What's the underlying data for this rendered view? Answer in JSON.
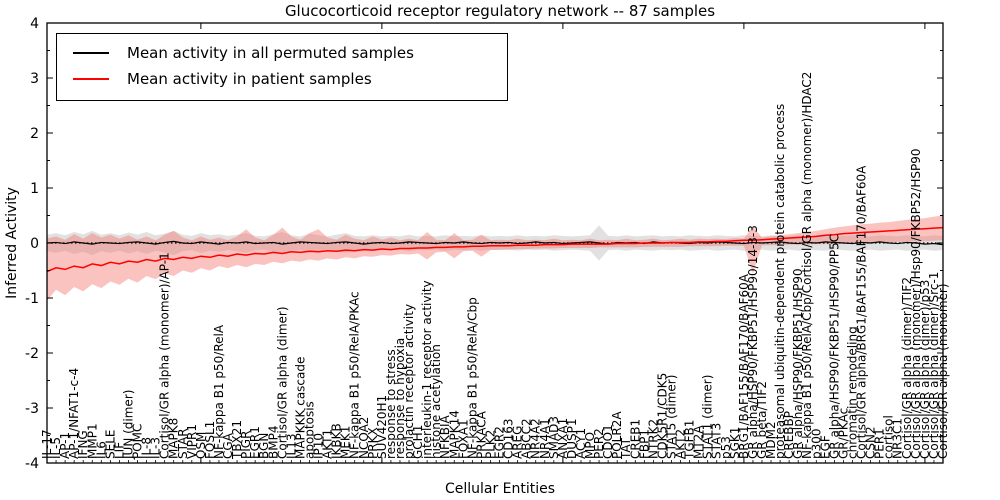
{
  "title": "Glucocorticoid receptor regulatory network -- 87 samples",
  "legend": {
    "entries": [
      {
        "label": "Mean activity in all permuted samples",
        "color": "#000000"
      },
      {
        "label": "Mean activity in patient samples",
        "color": "#ff0000"
      }
    ]
  },
  "colors": {
    "permuted_line": "#000000",
    "patient_line": "#ff0000",
    "permuted_band": "#c8c8c8",
    "patient_band": "#f77b72",
    "axis": "#000000",
    "background": "#ffffff"
  },
  "chart_data": {
    "type": "line",
    "title": "Glucocorticoid receptor regulatory network -- 87 samples",
    "xlabel": "Cellular Entities",
    "ylabel": "Inferred Activity",
    "ylim": [
      -4,
      4
    ],
    "yticks": [
      4,
      3,
      2,
      1,
      0,
      -1,
      -2,
      -3,
      -4
    ],
    "zero_line_style": "dotted",
    "grid": false,
    "legend_position": "upper left",
    "categories": [
      "IL-17",
      "IL-5",
      "AP-1",
      "AP-1/NFAT1-c-4",
      "IFNG",
      "MMP1",
      "IL6",
      "SELE",
      "LIF",
      "JUN (dimer)",
      "POMC",
      "IL-8",
      "IL-3",
      "Cortisol/GR alpha (monomer)/AP-1",
      "MAPK8",
      "STAR",
      "VIPR1",
      "OSM",
      "FOSL1",
      "NF-kappa B1 p50/RelA",
      "CGA",
      "TBX21",
      "PIGR",
      "EGR1",
      "BGN",
      "BMP4",
      "Cortisol/GR alpha (dimer)",
      "IL13",
      "MAPKKK cascade",
      "apoptosis",
      "IP10",
      "AKT1",
      "IKBKB",
      "MEK1",
      "NF-kappa B1 p50/RelA/PKAc",
      "NCOA2",
      "PRKX",
      "SUV420H1",
      "response to stress",
      "response to hypoxia",
      "prolactin receptor activity",
      "GCH1",
      "interleukin-1 receptor activity",
      "histone acetylation",
      "NFKBIA",
      "MAPK14",
      "FOXA1",
      "NF-kappa B1 p50/RelA/Cbp",
      "PRKACA",
      "PLK2",
      "EGR2",
      "CD163",
      "AREG",
      "ABCC2",
      "NR4A2",
      "NR4A1",
      "SMAD3",
      "ANXA1",
      "DUSP1",
      "ACY1",
      "MPO",
      "PER2",
      "CDO1",
      "POLR2A",
      "TAT",
      "CREB1",
      "FBP1",
      "NTRK2",
      "CDK5R1/CDK5",
      "STAT5 (dimer)",
      "AKT2",
      "TGFB1",
      "MT2A",
      "STAT1 (dimer)",
      "STAT3",
      "p53",
      "SGK1",
      "BRG1/BAF155/BAF170/BAF60A",
      "GR alpha/HSP90/FKBP51/HSP90/14-3-3",
      "GR beta/TIF2",
      "MDM2",
      "proteasomal ubiquitin-dependent protein catabolic process",
      "CREBBP",
      "GR alpha/HSP90/FKBP51/HSP90",
      "NF-kappa B1 p50/RelA/Cbp/Cortisol/GR alpha (monomer)/HDAC2",
      "p300",
      "EGF",
      "GR alpha/HSP90/FKBP51/HSP90/PP5C",
      "GR/PKAc",
      "chromatin remodeling",
      "Cortisol/GR alpha/BRG1/BAF155/BAF170/BAF60A",
      "CSN2",
      "PER1",
      "cortisol",
      "NR3C1",
      "Cortisol/GR alpha (dimer)/TIF2",
      "Cortisol/GR alpha (monomer)/Hsp90/FKBP52/HSP90",
      "Cortisol/GR alpha (dimer)/p53",
      "Cortisol/GR alpha (dimer)/Src-1",
      "Cortisol/GR alpha (monomer)"
    ],
    "series": [
      {
        "name": "Mean activity in all permuted samples",
        "color": "#000000",
        "band_color": "#c8c8c8",
        "values": [
          0.0,
          0.01,
          -0.01,
          0.02,
          0.0,
          -0.02,
          0.01,
          0.0,
          -0.01,
          0.01,
          0.02,
          0.0,
          -0.02,
          0.01,
          0.03,
          0.0,
          -0.01,
          0.02,
          0.0,
          -0.02,
          0.01,
          0.0,
          0.02,
          -0.01,
          0.0,
          0.01,
          -0.02,
          0.0,
          0.02,
          0.01,
          0.0,
          -0.01,
          0.01,
          0.02,
          0.0,
          -0.02,
          0.0,
          0.01,
          -0.01,
          0.0,
          0.02,
          0.01,
          0.0,
          -0.01,
          0.01,
          0.0,
          0.02,
          0.0,
          -0.01,
          0.01,
          0.0,
          0.01,
          -0.01,
          0.0,
          0.02,
          0.0,
          0.01,
          -0.01,
          0.0,
          0.01,
          0.02,
          0.0,
          -0.02,
          0.01,
          0.0,
          0.01,
          -0.01,
          0.02,
          0.0,
          0.01,
          0.0,
          -0.01,
          0.01,
          0.0,
          0.02,
          0.01,
          0.0,
          -0.01,
          0.01,
          0.0,
          0.01,
          0.02,
          0.0,
          -0.01,
          0.01,
          0.0,
          0.02,
          0.01,
          0.0,
          -0.01,
          0.01,
          0.0,
          0.02,
          0.0,
          -0.01,
          0.01,
          0.0,
          -0.02,
          -0.01,
          -0.03
        ],
        "band_upper": [
          0.15,
          0.18,
          0.14,
          0.2,
          0.16,
          0.22,
          0.15,
          0.18,
          0.14,
          0.19,
          0.15,
          0.2,
          0.14,
          0.17,
          0.22,
          0.15,
          0.13,
          0.18,
          0.14,
          0.16,
          0.13,
          0.15,
          0.18,
          0.13,
          0.12,
          0.16,
          0.2,
          0.14,
          0.12,
          0.17,
          0.14,
          0.12,
          0.15,
          0.18,
          0.13,
          0.12,
          0.14,
          0.12,
          0.13,
          0.12,
          0.15,
          0.12,
          0.13,
          0.12,
          0.14,
          0.12,
          0.13,
          0.12,
          0.14,
          0.12,
          0.13,
          0.12,
          0.14,
          0.12,
          0.13,
          0.12,
          0.14,
          0.13,
          0.12,
          0.13,
          0.14,
          0.32,
          0.13,
          0.12,
          0.14,
          0.12,
          0.13,
          0.14,
          0.12,
          0.13,
          0.12,
          0.14,
          0.13,
          0.12,
          0.14,
          0.13,
          0.12,
          0.14,
          0.13,
          0.12,
          0.14,
          0.13,
          0.12,
          0.14,
          0.12,
          0.13,
          0.14,
          0.12,
          0.13,
          0.14,
          0.13,
          0.12,
          0.14,
          0.13,
          0.12,
          0.14,
          0.13,
          0.12,
          0.14,
          0.13
        ],
        "band_lower": [
          -0.15,
          -0.18,
          -0.14,
          -0.2,
          -0.16,
          -0.22,
          -0.15,
          -0.18,
          -0.14,
          -0.19,
          -0.15,
          -0.2,
          -0.14,
          -0.17,
          -0.22,
          -0.15,
          -0.13,
          -0.18,
          -0.14,
          -0.16,
          -0.13,
          -0.15,
          -0.18,
          -0.13,
          -0.12,
          -0.16,
          -0.2,
          -0.14,
          -0.12,
          -0.17,
          -0.14,
          -0.12,
          -0.15,
          -0.18,
          -0.13,
          -0.12,
          -0.14,
          -0.12,
          -0.13,
          -0.12,
          -0.15,
          -0.12,
          -0.13,
          -0.12,
          -0.14,
          -0.12,
          -0.13,
          -0.12,
          -0.14,
          -0.12,
          -0.13,
          -0.12,
          -0.14,
          -0.12,
          -0.13,
          -0.12,
          -0.14,
          -0.13,
          -0.12,
          -0.13,
          -0.14,
          -0.32,
          -0.13,
          -0.12,
          -0.14,
          -0.12,
          -0.13,
          -0.14,
          -0.12,
          -0.13,
          -0.12,
          -0.14,
          -0.13,
          -0.12,
          -0.14,
          -0.13,
          -0.12,
          -0.14,
          -0.13,
          -0.12,
          -0.14,
          -0.13,
          -0.12,
          -0.14,
          -0.12,
          -0.13,
          -0.14,
          -0.12,
          -0.13,
          -0.14,
          -0.13,
          -0.12,
          -0.14,
          -0.13,
          -0.12,
          -0.14,
          -0.13,
          -0.12,
          -0.14,
          -0.13
        ]
      },
      {
        "name": "Mean activity in patient samples",
        "color": "#ff0000",
        "band_color": "#f77b72",
        "values": [
          -0.52,
          -0.45,
          -0.48,
          -0.42,
          -0.45,
          -0.38,
          -0.41,
          -0.35,
          -0.38,
          -0.33,
          -0.35,
          -0.3,
          -0.33,
          -0.28,
          -0.3,
          -0.26,
          -0.28,
          -0.24,
          -0.26,
          -0.22,
          -0.24,
          -0.2,
          -0.22,
          -0.19,
          -0.2,
          -0.17,
          -0.19,
          -0.16,
          -0.17,
          -0.15,
          -0.16,
          -0.14,
          -0.15,
          -0.13,
          -0.14,
          -0.12,
          -0.13,
          -0.11,
          -0.12,
          -0.1,
          -0.1,
          -0.09,
          -0.09,
          -0.08,
          -0.08,
          -0.07,
          -0.07,
          -0.06,
          -0.06,
          -0.05,
          -0.05,
          -0.05,
          -0.04,
          -0.04,
          -0.04,
          -0.03,
          -0.03,
          -0.03,
          -0.02,
          -0.02,
          -0.02,
          -0.02,
          -0.02,
          -0.01,
          -0.01,
          -0.01,
          0.0,
          0.0,
          0.0,
          0.01,
          0.01,
          0.01,
          0.02,
          0.02,
          0.03,
          0.03,
          0.04,
          0.05,
          0.05,
          0.06,
          0.07,
          0.08,
          0.09,
          0.1,
          0.11,
          0.12,
          0.14,
          0.15,
          0.17,
          0.18,
          0.19,
          0.2,
          0.21,
          0.22,
          0.23,
          0.24,
          0.25,
          0.26,
          0.27,
          0.28
        ],
        "band_upper": [
          0.08,
          0.12,
          0.06,
          0.16,
          0.08,
          0.18,
          0.1,
          0.15,
          0.08,
          0.14,
          0.06,
          0.12,
          0.05,
          0.15,
          0.22,
          0.1,
          0.05,
          0.12,
          0.06,
          0.1,
          0.05,
          0.12,
          0.25,
          0.1,
          0.05,
          0.15,
          0.28,
          0.12,
          0.06,
          0.18,
          0.25,
          0.1,
          0.06,
          0.15,
          0.08,
          0.05,
          0.12,
          0.06,
          0.1,
          0.05,
          0.08,
          0.05,
          0.2,
          0.06,
          0.05,
          0.18,
          0.05,
          0.06,
          0.15,
          0.05,
          0.06,
          0.05,
          0.08,
          0.05,
          0.06,
          0.05,
          0.08,
          0.05,
          0.06,
          0.05,
          0.08,
          0.05,
          0.06,
          0.05,
          0.08,
          0.05,
          0.06,
          0.08,
          0.05,
          0.06,
          0.08,
          0.06,
          0.08,
          0.07,
          0.08,
          0.07,
          0.09,
          0.08,
          0.3,
          0.1,
          0.12,
          0.14,
          0.16,
          0.18,
          0.2,
          0.22,
          0.25,
          0.28,
          0.3,
          0.32,
          0.34,
          0.35,
          0.37,
          0.38,
          0.4,
          0.42,
          0.44,
          0.45,
          0.48,
          0.5
        ],
        "band_lower": [
          -1.05,
          -0.85,
          -0.95,
          -0.8,
          -0.88,
          -0.75,
          -0.82,
          -0.7,
          -0.76,
          -0.65,
          -0.72,
          -0.6,
          -0.66,
          -0.55,
          -0.6,
          -0.5,
          -0.54,
          -0.46,
          -0.5,
          -0.42,
          -0.46,
          -0.4,
          -0.44,
          -0.38,
          -0.4,
          -0.34,
          -0.37,
          -0.32,
          -0.34,
          -0.3,
          -0.32,
          -0.28,
          -0.3,
          -0.26,
          -0.28,
          -0.24,
          -0.25,
          -0.22,
          -0.23,
          -0.2,
          -0.21,
          -0.19,
          -0.3,
          -0.17,
          -0.16,
          -0.28,
          -0.15,
          -0.14,
          -0.25,
          -0.13,
          -0.12,
          -0.12,
          -0.11,
          -0.11,
          -0.1,
          -0.1,
          -0.1,
          -0.09,
          -0.09,
          -0.09,
          -0.09,
          -0.08,
          -0.08,
          -0.08,
          -0.08,
          -0.08,
          -0.07,
          -0.07,
          -0.07,
          -0.07,
          -0.07,
          -0.06,
          -0.06,
          -0.06,
          -0.06,
          -0.05,
          -0.05,
          -0.05,
          -0.55,
          -0.04,
          -0.04,
          -0.04,
          -0.03,
          -0.03,
          -0.03,
          -0.02,
          -0.02,
          -0.02,
          -0.01,
          -0.01,
          0.0,
          0.0,
          0.01,
          0.01,
          0.02,
          0.02,
          0.03,
          0.03,
          0.04,
          0.05
        ]
      }
    ]
  }
}
